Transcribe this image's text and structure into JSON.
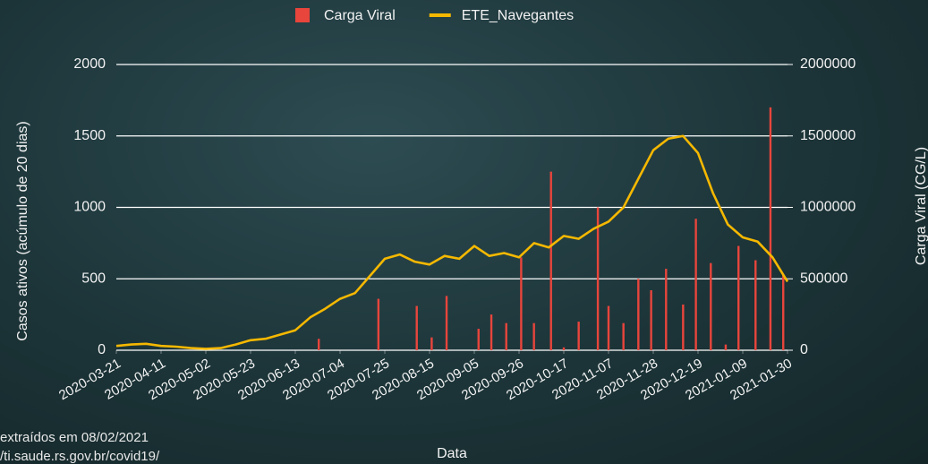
{
  "chart_data": {
    "type": "combo",
    "x_label": "Data",
    "y_label": "Casos ativos (acúmulo de 20 dias)",
    "y2_label": "Carga Viral (CG/L)",
    "notes": [
      "extraídos em 08/02/2021",
      "/ti.saude.rs.gov.br/covid19/"
    ],
    "xlim": [
      "2020-03-21",
      "2021-01-30"
    ],
    "xticks": [
      "2020-03-21",
      "2020-04-11",
      "2020-05-02",
      "2020-05-23",
      "2020-06-13",
      "2020-07-04",
      "2020-07-25",
      "2020-08-15",
      "2020-09-05",
      "2020-09-26",
      "2020-10-17",
      "2020-11-07",
      "2020-11-28",
      "2020-12-19",
      "2021-01-09",
      "2021-01-30"
    ],
    "ylim": [
      0,
      2000
    ],
    "yticks": [
      0,
      500,
      1000,
      1500,
      2000
    ],
    "y2lim": [
      0,
      2000000
    ],
    "y2ticks": [
      0,
      500000,
      1000000,
      1500000,
      2000000
    ],
    "grid": true,
    "legend": "top",
    "series": [
      {
        "name": "Carga Viral",
        "type": "bar",
        "axis": "y2",
        "color": "#e8453c",
        "x": [
          "2020-06-24",
          "2020-07-22",
          "2020-08-09",
          "2020-08-16",
          "2020-08-23",
          "2020-09-07",
          "2020-09-13",
          "2020-09-20",
          "2020-09-27",
          "2020-10-03",
          "2020-10-11",
          "2020-10-17",
          "2020-10-24",
          "2020-11-02",
          "2020-11-07",
          "2020-11-14",
          "2020-11-21",
          "2020-11-27",
          "2020-12-04",
          "2020-12-12",
          "2020-12-18",
          "2020-12-25",
          "2021-01-01",
          "2021-01-07",
          "2021-01-15",
          "2021-01-22",
          "2021-01-28"
        ],
        "values": [
          80000,
          360000,
          310000,
          90000,
          380000,
          150000,
          250000,
          190000,
          650000,
          190000,
          1250000,
          20000,
          200000,
          1000000,
          310000,
          190000,
          500000,
          420000,
          570000,
          320000,
          920000,
          610000,
          40000,
          730000,
          630000,
          1700000,
          530000
        ]
      },
      {
        "name": "ETE_Navegantes",
        "type": "line",
        "color": "#f5b800",
        "x": [
          "2020-03-21",
          "2020-03-28",
          "2020-04-04",
          "2020-04-11",
          "2020-04-18",
          "2020-04-25",
          "2020-05-02",
          "2020-05-09",
          "2020-05-16",
          "2020-05-23",
          "2020-05-30",
          "2020-06-06",
          "2020-06-13",
          "2020-06-20",
          "2020-06-27",
          "2020-07-04",
          "2020-07-11",
          "2020-07-18",
          "2020-07-25",
          "2020-08-01",
          "2020-08-08",
          "2020-08-15",
          "2020-08-22",
          "2020-08-29",
          "2020-09-05",
          "2020-09-12",
          "2020-09-19",
          "2020-09-26",
          "2020-10-03",
          "2020-10-10",
          "2020-10-17",
          "2020-10-24",
          "2020-10-31",
          "2020-11-07",
          "2020-11-14",
          "2020-11-21",
          "2020-11-28",
          "2020-12-05",
          "2020-12-12",
          "2020-12-19",
          "2020-12-26",
          "2021-01-02",
          "2021-01-09",
          "2021-01-16",
          "2021-01-23",
          "2021-01-30"
        ],
        "values": [
          30,
          40,
          45,
          30,
          25,
          15,
          10,
          15,
          40,
          70,
          80,
          110,
          140,
          230,
          290,
          360,
          400,
          520,
          640,
          670,
          620,
          600,
          660,
          640,
          730,
          660,
          680,
          650,
          750,
          720,
          800,
          780,
          850,
          900,
          1000,
          1200,
          1400,
          1480,
          1500,
          1380,
          1100,
          880,
          790,
          760,
          650,
          480
        ]
      }
    ]
  }
}
